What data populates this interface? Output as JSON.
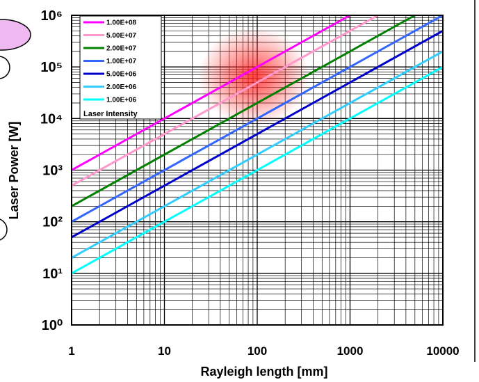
{
  "chart_data": {
    "type": "line",
    "xlabel": "Rayleigh length [mm]",
    "ylabel": "Laser Power [W]",
    "log_x": true,
    "log_y": true,
    "grid": true,
    "minor_grid": true,
    "legend_title": "Laser Intensity",
    "legend": "upper-left",
    "xlim": [
      1,
      10000
    ],
    "xticks": [
      1,
      10,
      100,
      1000,
      10000
    ],
    "ylim": [
      1,
      1000000
    ],
    "yticks": [
      {
        "value": 1,
        "label": "10⁰"
      },
      {
        "value": 10,
        "label": "10¹"
      },
      {
        "value": 100,
        "label": "10²"
      },
      {
        "value": 1000,
        "label": "10³"
      },
      {
        "value": 10000,
        "label": "10⁴"
      },
      {
        "value": 100000,
        "label": "10⁵"
      },
      {
        "value": 1000000,
        "label": "10⁶"
      }
    ],
    "series": [
      {
        "name": "1.00E+08",
        "color": "#ff00ff",
        "x": [
          1,
          1000
        ],
        "values": [
          1000,
          1000000
        ]
      },
      {
        "name": "5.00E+07",
        "color": "#ff99cc",
        "x": [
          1,
          2000
        ],
        "values": [
          500,
          1000000
        ]
      },
      {
        "name": "2.00E+07",
        "color": "#008000",
        "x": [
          1,
          5000
        ],
        "values": [
          200,
          1000000
        ]
      },
      {
        "name": "1.00E+07",
        "color": "#3366ff",
        "x": [
          1,
          10000
        ],
        "values": [
          100,
          1000000
        ]
      },
      {
        "name": "5.00E+06",
        "color": "#0000cc",
        "x": [
          1,
          10000
        ],
        "values": [
          50,
          500000
        ]
      },
      {
        "name": "2.00E+06",
        "color": "#33ccff",
        "x": [
          1,
          10000
        ],
        "values": [
          20,
          200000
        ]
      },
      {
        "name": "1.00E+06",
        "color": "#00ffff",
        "x": [
          1,
          10000
        ],
        "values": [
          10,
          100000
        ]
      }
    ]
  }
}
